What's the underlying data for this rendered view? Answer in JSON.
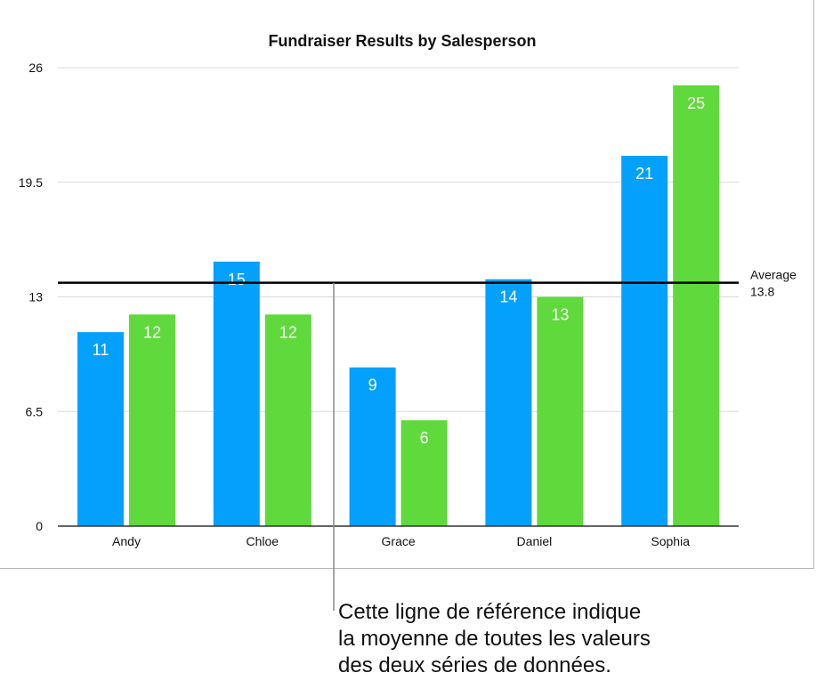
{
  "chart_data": {
    "type": "bar",
    "title": "Fundraiser Results by Salesperson",
    "categories": [
      "Andy",
      "Chloe",
      "Grace",
      "Daniel",
      "Sophia"
    ],
    "series": [
      {
        "values": [
          11,
          15,
          9,
          14,
          21
        ],
        "color": "#03a1fc"
      },
      {
        "values": [
          12,
          12,
          6,
          13,
          25
        ],
        "color": "#5fd93b"
      }
    ],
    "ylim": [
      0,
      26
    ],
    "yticks": [
      "0",
      "6.5",
      "13",
      "19.5",
      "26"
    ],
    "grid": true,
    "reference_line": {
      "label": "Average",
      "value": 13.8,
      "value_label": "13.8"
    }
  },
  "callout": {
    "lines": [
      "Cette ligne de référence indique",
      "la moyenne de toutes les valeurs",
      "des deux séries de données."
    ]
  }
}
